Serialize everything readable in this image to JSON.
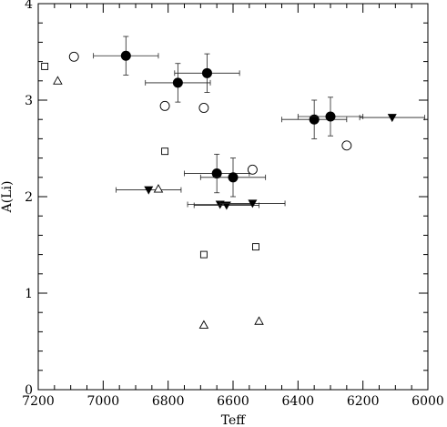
{
  "chart_data": {
    "type": "scatter",
    "xlabel": "Teff",
    "ylabel": "A(Li)",
    "xlim": [
      7200,
      6000
    ],
    "ylim": [
      0,
      4
    ],
    "x_reversed": true,
    "xticks": [
      7200,
      7000,
      6800,
      6600,
      6400,
      6200,
      6000
    ],
    "yticks": [
      0,
      1,
      2,
      3,
      4
    ],
    "grid": false,
    "series": [
      {
        "marker": "filled-circle",
        "points": [
          {
            "x": 6930,
            "y": 3.46,
            "xerr": [
              100,
              100
            ],
            "yerr": [
              0.2,
              0.2
            ]
          },
          {
            "x": 6770,
            "y": 3.18,
            "xerr": [
              100,
              100
            ],
            "yerr": [
              0.2,
              0.2
            ]
          },
          {
            "x": 6680,
            "y": 3.28,
            "xerr": [
              100,
              100
            ],
            "yerr": [
              0.2,
              0.2
            ]
          },
          {
            "x": 6650,
            "y": 2.24,
            "xerr": [
              100,
              100
            ],
            "yerr": [
              0.2,
              0.2
            ]
          },
          {
            "x": 6600,
            "y": 2.2,
            "xerr": [
              100,
              100
            ],
            "yerr": [
              0.2,
              0.2
            ]
          },
          {
            "x": 6350,
            "y": 2.8,
            "xerr": [
              100,
              100
            ],
            "yerr": [
              0.2,
              0.2
            ]
          },
          {
            "x": 6300,
            "y": 2.83,
            "xerr": [
              100,
              100
            ],
            "yerr": [
              0.2,
              0.2
            ]
          }
        ]
      },
      {
        "marker": "filled-triangle-down",
        "points": [
          {
            "x": 6860,
            "y": 2.07,
            "xerr": [
              100,
              100
            ]
          },
          {
            "x": 6640,
            "y": 1.92,
            "xerr": [
              100,
              100
            ]
          },
          {
            "x": 6620,
            "y": 1.91,
            "xerr": [
              100,
              100
            ]
          },
          {
            "x": 6540,
            "y": 1.93,
            "xerr": [
              100,
              100
            ]
          },
          {
            "x": 6110,
            "y": 2.82,
            "xerr": [
              100,
              100
            ]
          }
        ]
      },
      {
        "marker": "open-circle",
        "points": [
          {
            "x": 7090,
            "y": 3.45
          },
          {
            "x": 6810,
            "y": 2.94
          },
          {
            "x": 6690,
            "y": 2.92
          },
          {
            "x": 6540,
            "y": 2.28
          },
          {
            "x": 6250,
            "y": 2.53
          }
        ]
      },
      {
        "marker": "open-square",
        "points": [
          {
            "x": 7180,
            "y": 3.35
          },
          {
            "x": 6810,
            "y": 2.47
          },
          {
            "x": 6690,
            "y": 1.4
          },
          {
            "x": 6530,
            "y": 1.48
          }
        ]
      },
      {
        "marker": "open-triangle-up",
        "points": [
          {
            "x": 7140,
            "y": 3.2
          },
          {
            "x": 6830,
            "y": 2.08
          },
          {
            "x": 6690,
            "y": 0.67
          },
          {
            "x": 6520,
            "y": 0.71
          }
        ]
      }
    ]
  }
}
